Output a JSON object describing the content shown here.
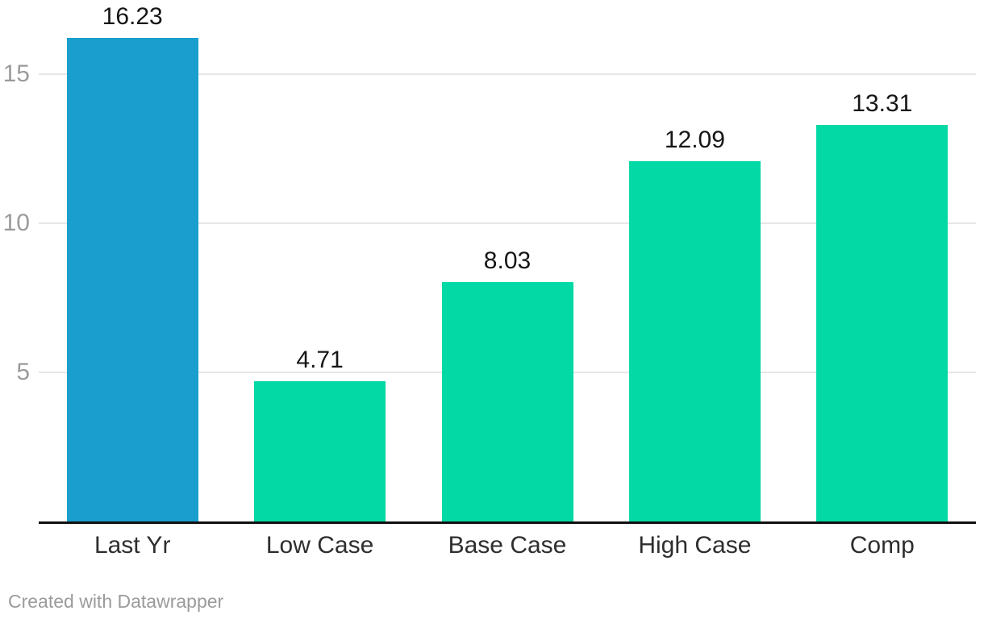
{
  "page": {
    "footer_attribution": "Created with Datawrapper",
    "background_color": "#ffffff"
  },
  "chart_data": {
    "type": "bar",
    "title": "",
    "xlabel": "",
    "ylabel": "",
    "categories": [
      "Last Yr",
      "Low Case",
      "Base Case",
      "High Case",
      "Comp"
    ],
    "values": [
      16.23,
      4.71,
      8.03,
      12.09,
      13.31
    ],
    "value_labels": [
      "16.23",
      "4.71",
      "8.03",
      "12.09",
      "13.31"
    ],
    "bar_colors": [
      "#1a9ecd",
      "#03d9a4",
      "#03d9a4",
      "#03d9a4",
      "#03d9a4"
    ],
    "y_ticks": [
      5,
      10,
      15
    ],
    "ylim": [
      0,
      17.5
    ],
    "grid": "horizontal",
    "legend": "none",
    "colors": {
      "highlight_bar": "#1a9ecd",
      "default_bar": "#03d9a4",
      "gridline": "#e6e6e6",
      "axis_line": "#111111",
      "tick_label": "#9b9b9b",
      "value_label": "#161616",
      "category_label": "#2e2e2e",
      "attribution": "#9b9b9b"
    }
  }
}
